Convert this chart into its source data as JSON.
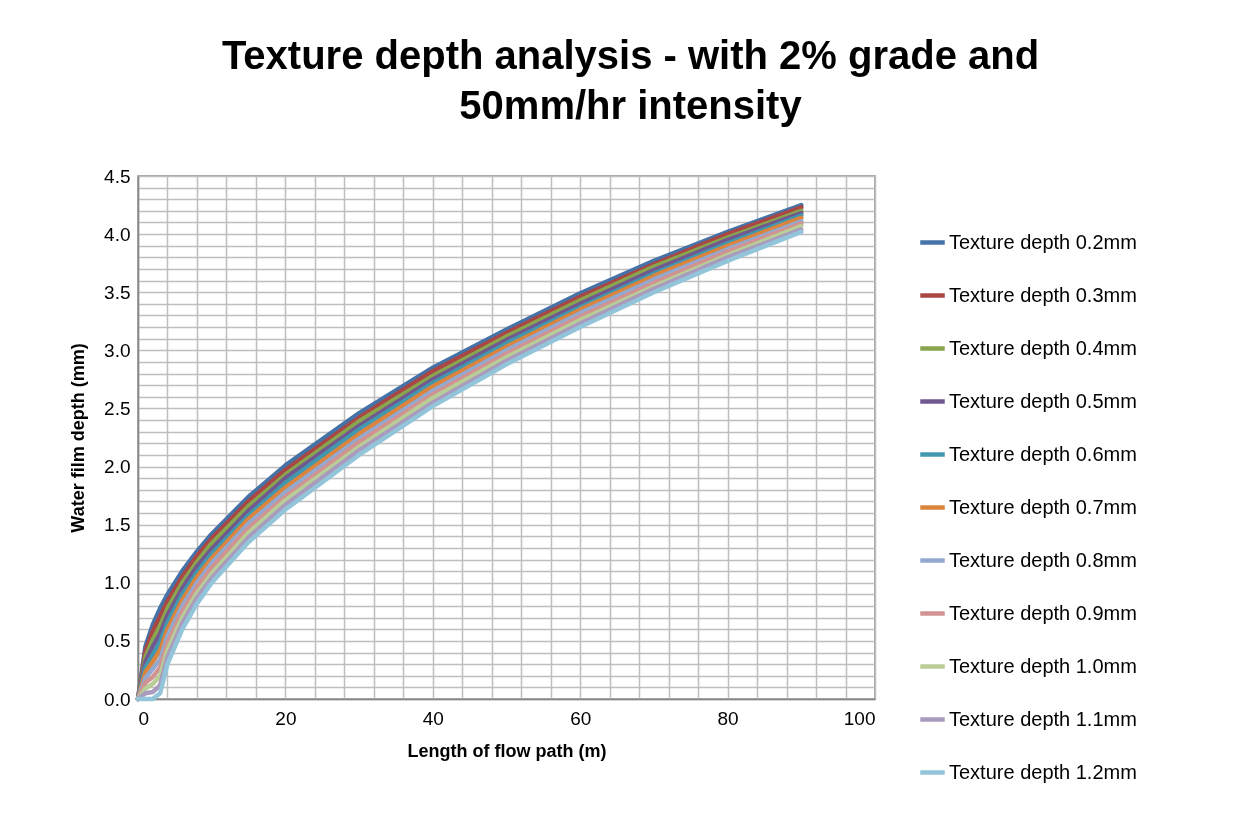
{
  "chart_data": {
    "type": "line",
    "title": "Texture depth analysis - with 2% grade and 50mm/hr intensity",
    "xlabel": "Length of flow path (m)",
    "ylabel": "Water film depth (mm)",
    "x": [
      0,
      1,
      2,
      3,
      4,
      6,
      8,
      10,
      15,
      20,
      30,
      40,
      50,
      60,
      70,
      80,
      90
    ],
    "xlim": [
      0,
      100
    ],
    "xticks": [
      0,
      {
        "value": 4,
        "label": null
      },
      {
        "value": 8,
        "label": null
      },
      {
        "value": 12,
        "label": null
      },
      {
        "value": 16,
        "label": null
      },
      20,
      {
        "value": 24,
        "label": null
      },
      {
        "value": 28,
        "label": null
      },
      {
        "value": 32,
        "label": null
      },
      {
        "value": 36,
        "label": null
      },
      40,
      {
        "value": 44,
        "label": null
      },
      {
        "value": 48,
        "label": null
      },
      {
        "value": 52,
        "label": null
      },
      {
        "value": 56,
        "label": null
      },
      60,
      {
        "value": 64,
        "label": null
      },
      {
        "value": 68,
        "label": null
      },
      {
        "value": 72,
        "label": null
      },
      {
        "value": 76,
        "label": null
      },
      80,
      {
        "value": 84,
        "label": null
      },
      {
        "value": 88,
        "label": null
      },
      {
        "value": 92,
        "label": null
      },
      {
        "value": 96,
        "label": null
      },
      100
    ],
    "ylim": [
      0,
      4.5
    ],
    "yticks": [
      {
        "value": 0,
        "label": "0.0"
      },
      {
        "value": 0.1,
        "label": null
      },
      {
        "value": 0.2,
        "label": null
      },
      {
        "value": 0.3,
        "label": null
      },
      {
        "value": 0.4,
        "label": null
      },
      0.5,
      {
        "value": 0.6,
        "label": null
      },
      {
        "value": 0.7,
        "label": null
      },
      {
        "value": 0.8,
        "label": null
      },
      {
        "value": 0.9,
        "label": null
      },
      {
        "value": 1,
        "label": "1.0"
      },
      {
        "value": 1.1,
        "label": null
      },
      {
        "value": 1.2,
        "label": null
      },
      {
        "value": 1.3,
        "label": null
      },
      {
        "value": 1.4,
        "label": null
      },
      1.5,
      {
        "value": 1.6,
        "label": null
      },
      {
        "value": 1.7,
        "label": null
      },
      {
        "value": 1.8,
        "label": null
      },
      {
        "value": 1.9,
        "label": null
      },
      {
        "value": 2,
        "label": "2.0"
      },
      {
        "value": 2.1,
        "label": null
      },
      {
        "value": 2.2,
        "label": null
      },
      {
        "value": 2.3,
        "label": null
      },
      {
        "value": 2.4,
        "label": null
      },
      2.5,
      {
        "value": 2.6,
        "label": null
      },
      {
        "value": 2.7,
        "label": null
      },
      {
        "value": 2.8,
        "label": null
      },
      {
        "value": 2.9,
        "label": null
      },
      {
        "value": 3,
        "label": "3.0"
      },
      {
        "value": 3.1,
        "label": null
      },
      {
        "value": 3.2,
        "label": null
      },
      {
        "value": 3.3,
        "label": null
      },
      {
        "value": 3.4,
        "label": null
      },
      3.5,
      {
        "value": 3.6,
        "label": null
      },
      {
        "value": 3.7,
        "label": null
      },
      {
        "value": 3.8,
        "label": null
      },
      {
        "value": 3.9,
        "label": null
      },
      {
        "value": 4,
        "label": "4.0"
      },
      {
        "value": 4.1,
        "label": null
      },
      {
        "value": 4.2,
        "label": null
      },
      {
        "value": 4.3,
        "label": null
      },
      {
        "value": 4.4,
        "label": null
      },
      4.5
    ],
    "grid": true,
    "legend": "right",
    "marker": "none",
    "line_style": "solid",
    "series": [
      {
        "name": "Texture depth 0.2mm",
        "color": "#4572a7",
        "values": [
          0,
          0.45,
          0.64,
          0.78,
          0.9,
          1.1,
          1.27,
          1.42,
          1.74,
          2.01,
          2.46,
          2.85,
          3.18,
          3.49,
          3.77,
          4.02,
          4.25
        ]
      },
      {
        "name": "Texture depth 0.3mm",
        "color": "#aa4643",
        "values": [
          0,
          0.41,
          0.58,
          0.71,
          0.84,
          1.05,
          1.23,
          1.38,
          1.7,
          1.97,
          2.42,
          2.82,
          3.15,
          3.46,
          3.74,
          4.0,
          4.23
        ]
      },
      {
        "name": "Texture depth 0.4mm",
        "color": "#89a54e",
        "values": [
          0,
          0.36,
          0.51,
          0.63,
          0.78,
          1.0,
          1.18,
          1.34,
          1.66,
          1.93,
          2.39,
          2.78,
          3.12,
          3.43,
          3.72,
          3.97,
          4.2
        ]
      },
      {
        "name": "Texture depth 0.5mm",
        "color": "#71588f",
        "values": [
          0,
          0.32,
          0.45,
          0.56,
          0.72,
          0.95,
          1.14,
          1.29,
          1.62,
          1.9,
          2.35,
          2.75,
          3.09,
          3.4,
          3.69,
          3.95,
          4.18
        ]
      },
      {
        "name": "Texture depth 0.6mm",
        "color": "#4198af",
        "values": [
          0,
          0.27,
          0.38,
          0.49,
          0.66,
          0.9,
          1.09,
          1.25,
          1.58,
          1.86,
          2.32,
          2.72,
          3.06,
          3.37,
          3.66,
          3.92,
          4.16
        ]
      },
      {
        "name": "Texture depth 0.7mm",
        "color": "#db843d",
        "values": [
          0,
          0.23,
          0.32,
          0.42,
          0.6,
          0.85,
          1.05,
          1.21,
          1.55,
          1.82,
          2.28,
          2.69,
          3.03,
          3.35,
          3.64,
          3.9,
          4.14
        ]
      },
      {
        "name": "Texture depth 0.8mm",
        "color": "#93a9cf",
        "values": [
          0,
          0.18,
          0.26,
          0.34,
          0.54,
          0.8,
          1.0,
          1.17,
          1.51,
          1.78,
          2.24,
          2.65,
          3.0,
          3.32,
          3.61,
          3.87,
          4.11
        ]
      },
      {
        "name": "Texture depth 0.9mm",
        "color": "#d19392",
        "values": [
          0,
          0.14,
          0.19,
          0.27,
          0.48,
          0.75,
          0.96,
          1.13,
          1.47,
          1.74,
          2.21,
          2.62,
          2.97,
          3.29,
          3.58,
          3.85,
          4.09
        ]
      },
      {
        "name": "Texture depth 1.0mm",
        "color": "#b9cd96",
        "values": [
          0,
          0.09,
          0.13,
          0.2,
          0.42,
          0.7,
          0.91,
          1.08,
          1.43,
          1.71,
          2.17,
          2.59,
          2.94,
          3.26,
          3.55,
          3.82,
          4.07
        ]
      },
      {
        "name": "Texture depth 1.1mm",
        "color": "#a99bbd",
        "values": [
          0,
          0.05,
          0.06,
          0.12,
          0.36,
          0.65,
          0.87,
          1.04,
          1.39,
          1.67,
          2.14,
          2.55,
          2.91,
          3.23,
          3.53,
          3.8,
          4.04
        ]
      },
      {
        "name": "Texture depth 1.2mm",
        "color": "#92c5da",
        "values": [
          0,
          0,
          0,
          0.05,
          0.3,
          0.6,
          0.82,
          1.0,
          1.35,
          1.63,
          2.1,
          2.52,
          2.88,
          3.2,
          3.5,
          3.77,
          4.02
        ]
      }
    ]
  }
}
